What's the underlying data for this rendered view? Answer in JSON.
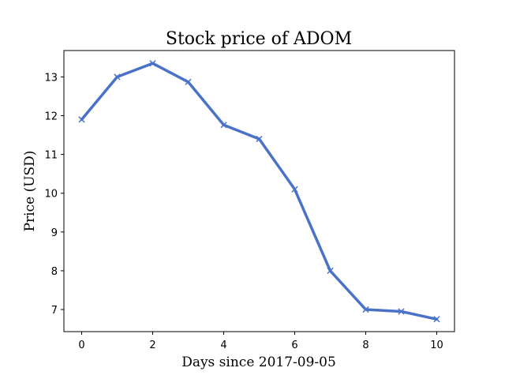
{
  "chart_data": {
    "type": "line",
    "title": "Stock price of ADOM",
    "xlabel": "Days since 2017-09-05",
    "ylabel": "Price (USD)",
    "x": [
      0,
      1,
      2,
      3,
      4,
      5,
      6,
      7,
      8,
      9,
      10
    ],
    "series": [
      {
        "values": [
          11.9,
          13.0,
          13.35,
          12.87,
          11.76,
          11.4,
          10.1,
          8.0,
          7.0,
          6.95,
          6.75
        ],
        "color": "#4b72c9",
        "marker": "x"
      }
    ],
    "xlim": [
      -0.5,
      10.5
    ],
    "ylim": [
      6.43,
      13.68
    ],
    "xticks": [
      "0",
      "2",
      "4",
      "6",
      "8",
      "10"
    ],
    "yticks": [
      "7",
      "8",
      "9",
      "10",
      "11",
      "12",
      "13"
    ],
    "grid": false
  }
}
